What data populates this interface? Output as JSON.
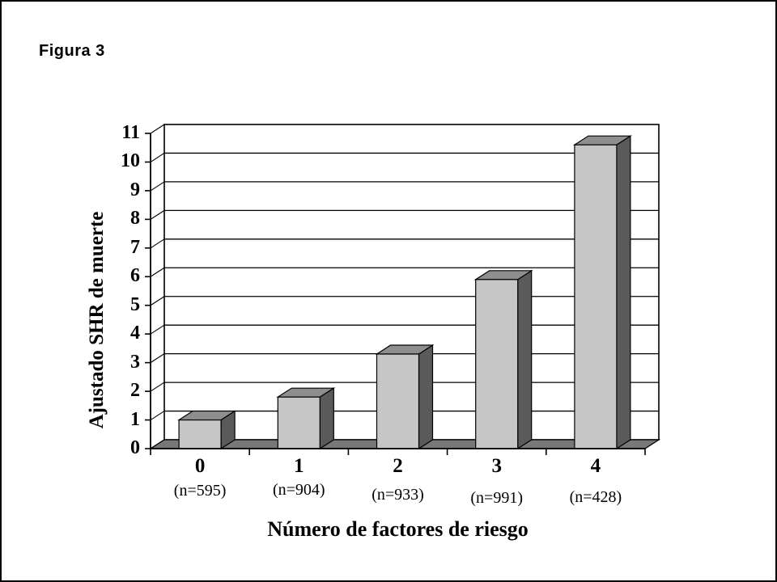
{
  "figure": {
    "label": "Figura 3"
  },
  "chart_data": {
    "type": "bar",
    "style": "3d-column",
    "title": "Figura 3",
    "xlabel": "Número de factores de riesgo",
    "ylabel": "Ajustado SHR de muerte",
    "categories": [
      "0",
      "1",
      "2",
      "3",
      "4"
    ],
    "category_counts": [
      "(n=595)",
      "(n=904)",
      "(n=933)",
      "(n=991)",
      "(n=428)"
    ],
    "values": [
      1.0,
      1.8,
      3.3,
      5.9,
      10.6
    ],
    "ylim": [
      0,
      11
    ],
    "yticks": [
      0,
      1,
      2,
      3,
      4,
      5,
      6,
      7,
      8,
      9,
      10,
      11
    ],
    "grid": true,
    "legend": "none",
    "colors": {
      "bar_front": "#c6c6c6",
      "bar_top": "#8e8e8e",
      "bar_side": "#5a5a5a",
      "floor": "#787878",
      "line": "#000000",
      "background": "#ffffff"
    }
  }
}
